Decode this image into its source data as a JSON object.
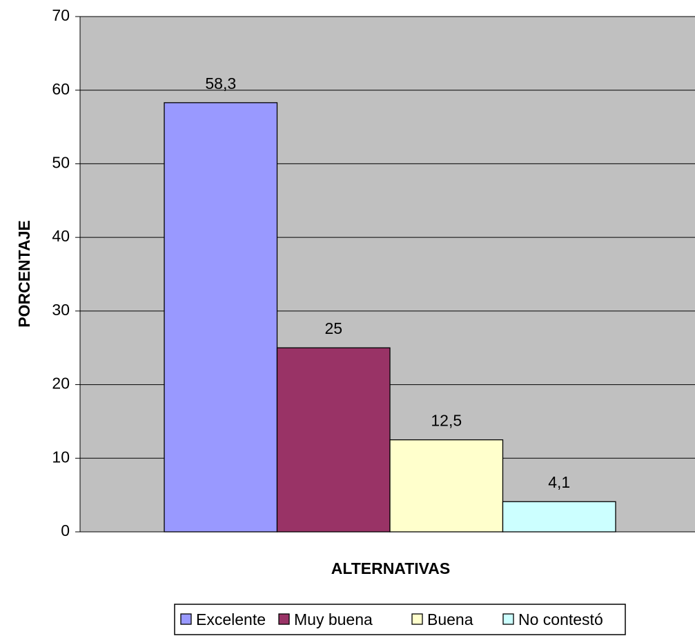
{
  "chart_data": {
    "type": "bar",
    "title": "",
    "xlabel": "ALTERNATIVAS",
    "ylabel": "PORCENTAJE",
    "ylim": [
      0,
      70
    ],
    "yticks": [
      "0",
      "10",
      "20",
      "30",
      "40",
      "50",
      "60",
      "70"
    ],
    "grid": true,
    "legend_position": "bottom",
    "plot_background": "#C0C0C0",
    "series": [
      {
        "name": "Excelente",
        "value": 58.3,
        "label": "58,3",
        "color": "#9999FF"
      },
      {
        "name": "Muy buena",
        "value": 25,
        "label": "25",
        "color": "#993366"
      },
      {
        "name": "Buena",
        "value": 12.5,
        "label": "12,5",
        "color": "#FFFFCC"
      },
      {
        "name": "No contestó",
        "value": 4.1,
        "label": "4,1",
        "color": "#CCFFFF"
      }
    ]
  }
}
